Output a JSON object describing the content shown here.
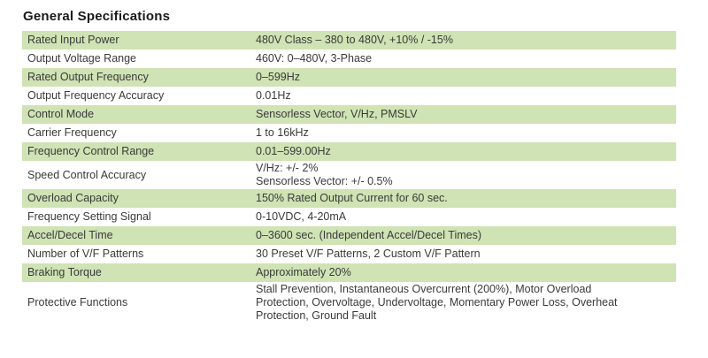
{
  "title": "General Specifications",
  "rows": [
    {
      "label": "Rated Input Power",
      "value": [
        "480V Class – 380 to 480V, +10% / -15%"
      ]
    },
    {
      "label": "Output Voltage Range",
      "value": [
        "460V: 0–480V, 3-Phase"
      ]
    },
    {
      "label": "Rated Output Frequency",
      "value": [
        "0–599Hz"
      ]
    },
    {
      "label": "Output Frequency Accuracy",
      "value": [
        "0.01Hz"
      ]
    },
    {
      "label": "Control Mode",
      "value": [
        "Sensorless Vector, V/Hz, PMSLV"
      ]
    },
    {
      "label": "Carrier Frequency",
      "value": [
        "1 to 16kHz"
      ]
    },
    {
      "label": "Frequency Control Range",
      "value": [
        "0.01–599.00Hz"
      ]
    },
    {
      "label": "Speed Control Accuracy",
      "value": [
        "V/Hz: +/- 2%",
        "Sensorless Vector: +/- 0.5%"
      ]
    },
    {
      "label": "Overload Capacity",
      "value": [
        "150% Rated Output Current for 60 sec."
      ]
    },
    {
      "label": "Frequency Setting Signal",
      "value": [
        "0-10VDC, 4-20mA"
      ]
    },
    {
      "label": "Accel/Decel Time",
      "value": [
        "0–3600 sec. (Independent Accel/Decel Times)"
      ]
    },
    {
      "label": "Number of V/F Patterns",
      "value": [
        "30 Preset V/F Patterns, 2 Custom V/F Pattern"
      ]
    },
    {
      "label": "Braking Torque",
      "value": [
        "Approximately 20%"
      ]
    },
    {
      "label": "Protective Functions",
      "value": [
        "Stall Prevention, Instantaneous Overcurrent (200%), Motor Overload",
        "Protection, Overvoltage, Undervoltage, Momentary Power Loss, Overheat",
        "Protection, Ground Fault"
      ]
    }
  ],
  "colors": {
    "shaded_row": "#cfe3b4",
    "plain_row": "#ffffff"
  }
}
